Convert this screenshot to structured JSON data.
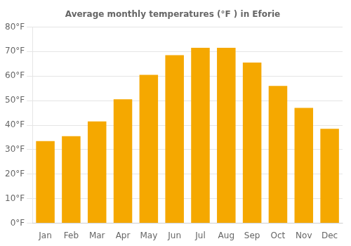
{
  "chart_data": {
    "type": "bar",
    "title": "Average monthly temperatures (°F ) in Eforie",
    "categories": [
      "Jan",
      "Feb",
      "Mar",
      "Apr",
      "May",
      "Jun",
      "Jul",
      "Aug",
      "Sep",
      "Oct",
      "Nov",
      "Dec"
    ],
    "values": [
      33.5,
      35.5,
      41.5,
      50.5,
      60.5,
      68.5,
      71.5,
      71.5,
      65.5,
      56.0,
      47.0,
      38.5
    ],
    "color": "#F5A800",
    "ylim": [
      0,
      80
    ],
    "yticks": [
      {
        "value": 0,
        "label": "0°F"
      },
      {
        "value": 10,
        "label": "10°F"
      },
      {
        "value": 20,
        "label": "20°F"
      },
      {
        "value": 30,
        "label": "30°F"
      },
      {
        "value": 40,
        "label": "40°F"
      },
      {
        "value": 50,
        "label": "50°F"
      },
      {
        "value": 60,
        "label": "60°F"
      },
      {
        "value": 70,
        "label": "70°F"
      },
      {
        "value": 80,
        "label": "80°F"
      }
    ],
    "grid": true
  }
}
